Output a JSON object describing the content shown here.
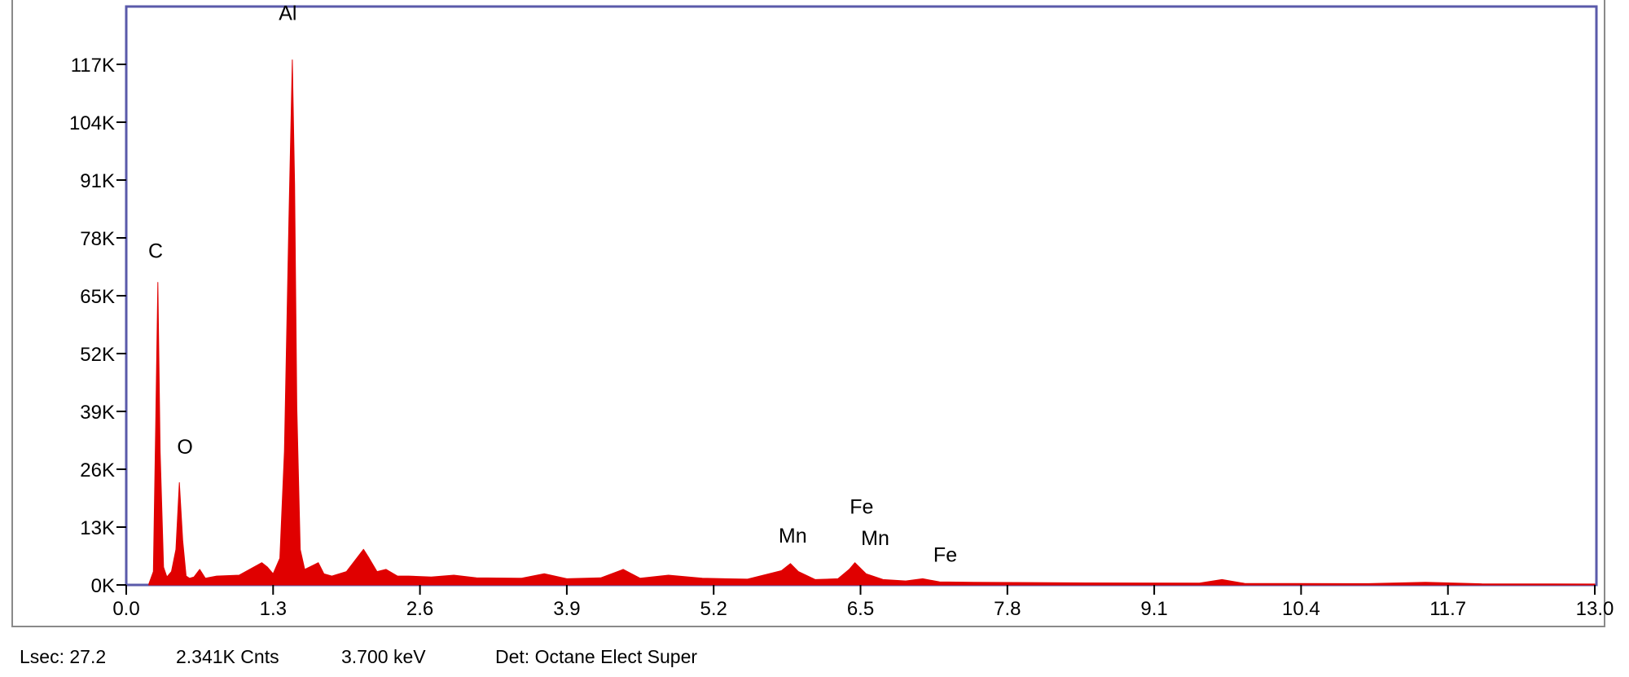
{
  "chart_data": {
    "type": "area",
    "xlim": [
      0.0,
      13.0
    ],
    "ylim": [
      0,
      130000
    ],
    "x_ticks": [
      0.0,
      1.3,
      2.6,
      3.9,
      5.2,
      6.5,
      7.8,
      9.1,
      10.4,
      11.7,
      13.0
    ],
    "x_tick_labels": [
      "0.0",
      "1.3",
      "2.6",
      "3.9",
      "5.2",
      "6.5",
      "7.8",
      "9.1",
      "10.4",
      "11.7",
      "13.0"
    ],
    "y_ticks": [
      0,
      13000,
      26000,
      39000,
      52000,
      65000,
      78000,
      91000,
      104000,
      117000
    ],
    "y_tick_labels": [
      "0K",
      "13K",
      "26K",
      "39K",
      "52K",
      "65K",
      "78K",
      "91K",
      "104K",
      "117K"
    ],
    "grid": false,
    "series_color": "#e00000",
    "frame_color": "#5a5aaa",
    "series": [
      {
        "x": [
          0.2,
          0.24,
          0.26,
          0.28,
          0.3,
          0.33,
          0.36,
          0.4,
          0.44,
          0.47,
          0.5,
          0.53,
          0.56,
          0.6,
          0.65,
          0.7,
          0.8,
          1.0,
          1.2,
          1.25,
          1.3,
          1.36,
          1.4,
          1.44,
          1.47,
          1.49,
          1.51,
          1.54,
          1.58,
          1.62,
          1.7,
          1.75,
          1.82,
          1.95,
          2.1,
          2.15,
          2.22,
          2.3,
          2.4,
          2.5,
          2.7,
          2.9,
          3.1,
          3.5,
          3.7,
          3.9,
          4.2,
          4.4,
          4.55,
          4.8,
          5.1,
          5.5,
          5.8,
          5.88,
          5.95,
          6.1,
          6.3,
          6.4,
          6.45,
          6.55,
          6.7,
          6.9,
          7.05,
          7.2,
          7.5,
          8.5,
          9.5,
          9.7,
          9.9,
          11.0,
          11.5,
          12.0,
          13.0
        ],
        "y": [
          200,
          3000,
          35000,
          68000,
          30000,
          4000,
          1800,
          3000,
          8000,
          23000,
          10000,
          2000,
          1500,
          1800,
          3500,
          1500,
          2000,
          2200,
          5000,
          4000,
          2500,
          6000,
          30000,
          82000,
          118000,
          90000,
          40000,
          8000,
          3500,
          4000,
          5000,
          2500,
          2000,
          3000,
          8000,
          6000,
          3000,
          3500,
          2000,
          2000,
          1800,
          2200,
          1600,
          1500,
          2500,
          1400,
          1600,
          3500,
          1500,
          2200,
          1500,
          1300,
          3200,
          4800,
          3000,
          1200,
          1400,
          3500,
          5000,
          2500,
          1200,
          900,
          1400,
          700,
          600,
          450,
          400,
          1200,
          350,
          300,
          600,
          250,
          200
        ]
      }
    ],
    "peak_labels": [
      {
        "text": "Al",
        "x": 1.43,
        "y": 127000
      },
      {
        "text": "C",
        "x": 0.26,
        "y": 73500
      },
      {
        "text": "O",
        "x": 0.52,
        "y": 29500
      },
      {
        "text": "Mn",
        "x": 5.9,
        "y": 9500
      },
      {
        "text": "Fe",
        "x": 6.51,
        "y": 16000
      },
      {
        "text": "Mn",
        "x": 6.63,
        "y": 9000
      },
      {
        "text": "Fe",
        "x": 7.25,
        "y": 5200
      }
    ]
  },
  "status": {
    "lsec": "Lsec: 27.2",
    "counts": "2.341K Cnts",
    "energy": "3.700 keV",
    "detector": "Det: Octane Elect Super"
  }
}
